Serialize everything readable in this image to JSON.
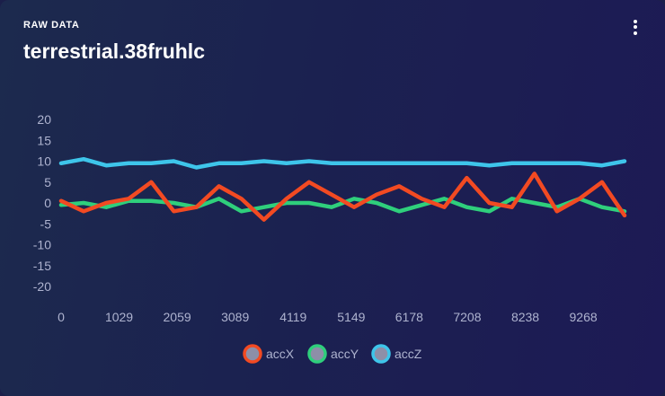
{
  "header": {
    "eyebrow": "RAW DATA",
    "title": "terrestrial.38fruhlc"
  },
  "colors": {
    "accX": "#f24a22",
    "accY": "#2fcf7c",
    "accZ": "#3ec5ea",
    "marker_fill": "#8d8fa8",
    "tick_text": "#aeb3cf"
  },
  "chart_data": {
    "type": "line",
    "title": "",
    "xlabel": "",
    "ylabel": "",
    "xlim": [
      0,
      10000
    ],
    "ylim": [
      -20,
      20
    ],
    "x_ticks": [
      "0",
      "1029",
      "2059",
      "3089",
      "4119",
      "5149",
      "6178",
      "7208",
      "8238",
      "9268"
    ],
    "y_ticks": [
      "20",
      "15",
      "10",
      "5",
      "0",
      "-5",
      "-10",
      "-15",
      "-20"
    ],
    "grid": false,
    "legend_position": "bottom-center",
    "x": [
      0,
      400,
      800,
      1200,
      1600,
      2000,
      2400,
      2800,
      3200,
      3600,
      4000,
      4400,
      4800,
      5200,
      5600,
      6000,
      6400,
      6800,
      7200,
      7600,
      8000,
      8400,
      8800,
      9200,
      9600,
      10000
    ],
    "series": [
      {
        "name": "accX",
        "values": [
          0.5,
          -2,
          0,
          1,
          5,
          -2,
          -1,
          4,
          1,
          -4,
          1,
          5,
          2,
          -1,
          2,
          4,
          1,
          -1,
          6,
          0,
          -1,
          7,
          -2,
          1,
          5,
          -3
        ]
      },
      {
        "name": "accY",
        "values": [
          -0.5,
          0,
          -1,
          0.5,
          0.5,
          0,
          -1,
          1,
          -2,
          -1,
          0,
          0,
          -1,
          1,
          0,
          -2,
          -0.5,
          1,
          -1,
          -2,
          1,
          0,
          -1,
          1,
          -1,
          -2
        ]
      },
      {
        "name": "accZ",
        "values": [
          9.5,
          10.5,
          9,
          9.5,
          9.5,
          10,
          8.5,
          9.5,
          9.5,
          10,
          9.5,
          10,
          9.5,
          9.5,
          9.5,
          9.5,
          9.5,
          9.5,
          9.5,
          9,
          9.5,
          9.5,
          9.5,
          9.5,
          9,
          10
        ]
      }
    ]
  }
}
